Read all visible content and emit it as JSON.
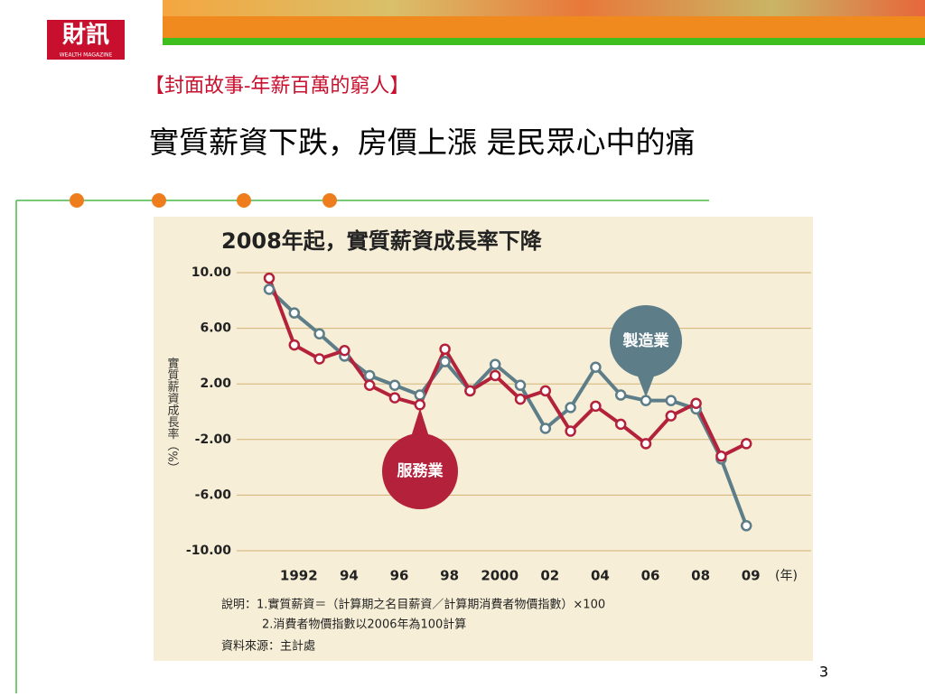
{
  "slide": {
    "logo": "財訊",
    "logo_sub": "WEALTH MAGAZINE",
    "section": "【封面故事-年薪百萬的窮人】",
    "headline": "實質薪資下跌，房價上漲 是民眾心中的痛",
    "page_number": "3"
  },
  "chart_data": {
    "type": "line",
    "title": "2008年起，實質薪資成長率下降",
    "y_label": "實質薪資成長率（%）",
    "x_unit": "(年)",
    "categories": [
      null,
      "1992",
      null,
      "94",
      null,
      "96",
      null,
      "98",
      null,
      "2000",
      null,
      "02",
      null,
      "04",
      null,
      "06",
      null,
      "08",
      null,
      "09"
    ],
    "series": [
      {
        "name": "製造業",
        "color": "#5d7d88",
        "values": [
          8.8,
          7.1,
          5.6,
          4.0,
          2.6,
          1.9,
          1.2,
          3.6,
          1.5,
          3.4,
          1.9,
          -1.2,
          0.3,
          3.2,
          1.2,
          0.8,
          0.8,
          0.2,
          -3.4,
          -8.2
        ]
      },
      {
        "name": "服務業",
        "color": "#b3213b",
        "values": [
          9.6,
          4.8,
          3.8,
          4.4,
          1.9,
          1.0,
          0.5,
          4.5,
          1.5,
          2.6,
          0.9,
          1.5,
          -1.4,
          0.4,
          -0.9,
          -2.3,
          -0.3,
          0.6,
          -3.2,
          -2.3
        ]
      }
    ],
    "ylim": [
      -10,
      10
    ],
    "yticks": [
      {
        "value": 10,
        "label": "10.00"
      },
      {
        "value": 6,
        "label": "6.00"
      },
      {
        "value": 2,
        "label": "2.00"
      },
      {
        "value": -2,
        "label": "-2.00"
      },
      {
        "value": -6,
        "label": "-6.00"
      },
      {
        "value": -10,
        "label": "-10.00"
      }
    ],
    "grid": true,
    "notes": [
      "說明：1.實質薪資＝（計算期之名目薪資／計算期消費者物價指數）×100",
      "2.消費者物價指數以2006年為100計算",
      "資料來源：主計處"
    ]
  }
}
